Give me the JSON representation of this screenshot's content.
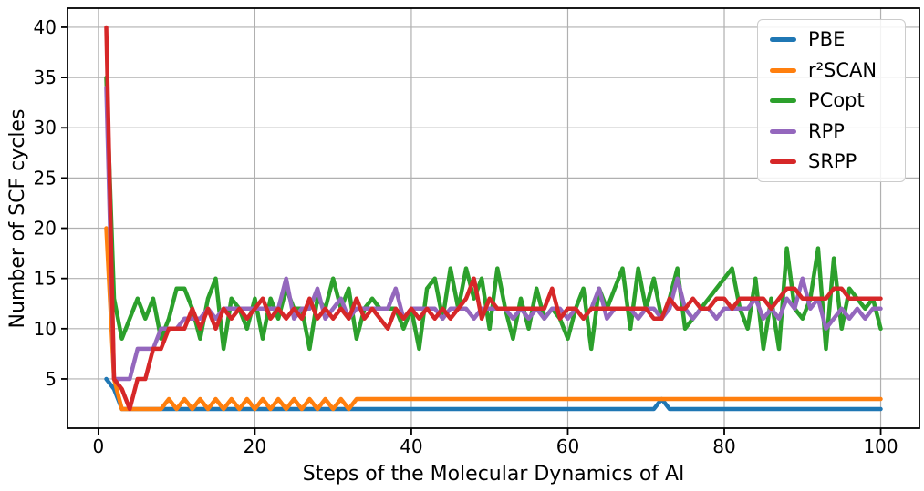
{
  "chart_data": {
    "type": "line",
    "title": "",
    "xlabel": "Steps of the Molecular Dynamics of Al",
    "ylabel": "Number of SCF cycles",
    "x_start": 1,
    "x_end": 100,
    "xlim": [
      -3.95,
      104.95
    ],
    "ylim": [
      0.1,
      41.9
    ],
    "xticks": [
      0,
      20,
      40,
      60,
      80,
      100
    ],
    "yticks": [
      5,
      10,
      15,
      20,
      25,
      30,
      35,
      40
    ],
    "grid": true,
    "grid_color": "#b0b0b0",
    "spine_color": "#000000",
    "line_width": 4.5,
    "legend_position": "upper right",
    "series": [
      {
        "name": "PBE",
        "color": "#1f77b4",
        "values": [
          5,
          4,
          2,
          2,
          2,
          2,
          2,
          2,
          2,
          2,
          2,
          2,
          2,
          2,
          2,
          2,
          2,
          2,
          2,
          2,
          2,
          2,
          2,
          2,
          2,
          2,
          2,
          2,
          2,
          2,
          2,
          2,
          2,
          2,
          2,
          2,
          2,
          2,
          2,
          2,
          2,
          2,
          2,
          2,
          2,
          2,
          2,
          2,
          2,
          2,
          2,
          2,
          2,
          2,
          2,
          2,
          2,
          2,
          2,
          2,
          2,
          2,
          2,
          2,
          2,
          2,
          2,
          2,
          2,
          2,
          2,
          3,
          2,
          2,
          2,
          2,
          2,
          2,
          2,
          2,
          2,
          2,
          2,
          2,
          2,
          2,
          2,
          2,
          2,
          2,
          2,
          2,
          2,
          2,
          2,
          2,
          2,
          2,
          2,
          2
        ]
      },
      {
        "name": "r²SCAN",
        "color": "#ff7f0e",
        "values": [
          20,
          5,
          2,
          2,
          2,
          2,
          2,
          2,
          3,
          2,
          3,
          2,
          3,
          2,
          3,
          2,
          3,
          2,
          3,
          2,
          3,
          2,
          3,
          2,
          3,
          2,
          3,
          2,
          3,
          2,
          3,
          2,
          3,
          3,
          3,
          3,
          3,
          3,
          3,
          3,
          3,
          3,
          3,
          3,
          3,
          3,
          3,
          3,
          3,
          3,
          3,
          3,
          3,
          3,
          3,
          3,
          3,
          3,
          3,
          3,
          3,
          3,
          3,
          3,
          3,
          3,
          3,
          3,
          3,
          3,
          3,
          3,
          3,
          3,
          3,
          3,
          3,
          3,
          3,
          3,
          3,
          3,
          3,
          3,
          3,
          3,
          3,
          3,
          3,
          3,
          3,
          3,
          3,
          3,
          3,
          3,
          3,
          3,
          3,
          3
        ]
      },
      {
        "name": "PCopt",
        "color": "#2ca02c",
        "values": [
          35,
          13,
          9,
          11,
          13,
          11,
          13,
          9,
          11,
          14,
          14,
          12,
          9,
          13,
          15,
          8,
          13,
          12,
          10,
          13,
          9,
          13,
          11,
          14,
          12,
          12,
          8,
          13,
          12,
          15,
          12,
          14,
          9,
          12,
          13,
          12,
          12,
          12,
          10,
          12,
          8,
          14,
          15,
          11,
          16,
          12,
          16,
          13,
          15,
          10,
          16,
          12,
          9,
          13,
          10,
          14,
          11,
          12,
          11,
          9,
          12,
          14,
          8,
          14,
          12,
          14,
          16,
          10,
          16,
          12,
          15,
          11,
          13,
          16,
          10,
          11,
          12,
          13,
          14,
          15,
          16,
          12,
          10,
          15,
          8,
          13,
          8,
          18,
          12,
          11,
          13,
          18,
          8,
          17,
          10,
          14,
          13,
          12,
          13,
          10
        ]
      },
      {
        "name": "RPP",
        "color": "#9467bd",
        "values": [
          34,
          5,
          5,
          5,
          8,
          8,
          8,
          10,
          10,
          10,
          11,
          11,
          11,
          12,
          11,
          12,
          12,
          12,
          12,
          12,
          12,
          12,
          12,
          15,
          11,
          12,
          12,
          14,
          11,
          12,
          13,
          11,
          12,
          12,
          12,
          12,
          12,
          14,
          11,
          12,
          12,
          12,
          12,
          11,
          12,
          12,
          12,
          11,
          12,
          12,
          12,
          12,
          11,
          12,
          11,
          12,
          11,
          12,
          12,
          11,
          12,
          11,
          12,
          14,
          11,
          12,
          12,
          12,
          11,
          12,
          12,
          11,
          12,
          15,
          12,
          11,
          12,
          12,
          11,
          12,
          12,
          12,
          12,
          13,
          11,
          12,
          11,
          13,
          12,
          15,
          12,
          13,
          10,
          11,
          12,
          11,
          12,
          11,
          12,
          12
        ]
      },
      {
        "name": "SRPP",
        "color": "#d62728",
        "values": [
          40,
          5,
          4,
          2,
          5,
          5,
          8,
          8,
          10,
          10,
          10,
          12,
          10,
          12,
          10,
          12,
          11,
          12,
          11,
          12,
          13,
          11,
          12,
          11,
          12,
          11,
          13,
          11,
          12,
          11,
          12,
          11,
          13,
          11,
          12,
          11,
          10,
          12,
          11,
          12,
          11,
          12,
          11,
          12,
          11,
          12,
          13,
          15,
          11,
          13,
          12,
          12,
          12,
          12,
          12,
          12,
          12,
          14,
          11,
          12,
          12,
          11,
          12,
          12,
          12,
          12,
          12,
          12,
          12,
          12,
          11,
          11,
          13,
          12,
          12,
          13,
          12,
          12,
          13,
          13,
          12,
          13,
          13,
          13,
          13,
          12,
          13,
          14,
          14,
          13,
          13,
          13,
          13,
          14,
          14,
          13,
          13,
          13,
          13,
          13
        ]
      }
    ]
  }
}
